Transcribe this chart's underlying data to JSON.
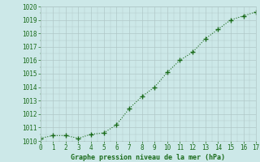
{
  "x": [
    0,
    1,
    2,
    3,
    4,
    5,
    6,
    7,
    8,
    9,
    10,
    11,
    12,
    13,
    14,
    15,
    16,
    17
  ],
  "y": [
    1010.2,
    1010.4,
    1010.4,
    1010.2,
    1010.5,
    1010.6,
    1011.2,
    1012.4,
    1013.3,
    1014.0,
    1015.1,
    1016.0,
    1016.6,
    1017.6,
    1018.3,
    1019.0,
    1019.3,
    1019.6
  ],
  "xlabel": "Graphe pression niveau de la mer (hPa)",
  "ylim_min": 1010,
  "ylim_max": 1020,
  "xlim_min": 0,
  "xlim_max": 17,
  "line_color": "#1a6b1a",
  "marker_color": "#1a6b1a",
  "bg_color": "#cce8e8",
  "grid_color": "#b0c8c8",
  "text_color": "#1a6b1a",
  "yticks": [
    1010,
    1011,
    1012,
    1013,
    1014,
    1015,
    1016,
    1017,
    1018,
    1019,
    1020
  ],
  "xticks": [
    0,
    1,
    2,
    3,
    4,
    5,
    6,
    7,
    8,
    9,
    10,
    11,
    12,
    13,
    14,
    15,
    16,
    17
  ],
  "tick_fontsize": 5.5,
  "xlabel_fontsize": 6.0
}
